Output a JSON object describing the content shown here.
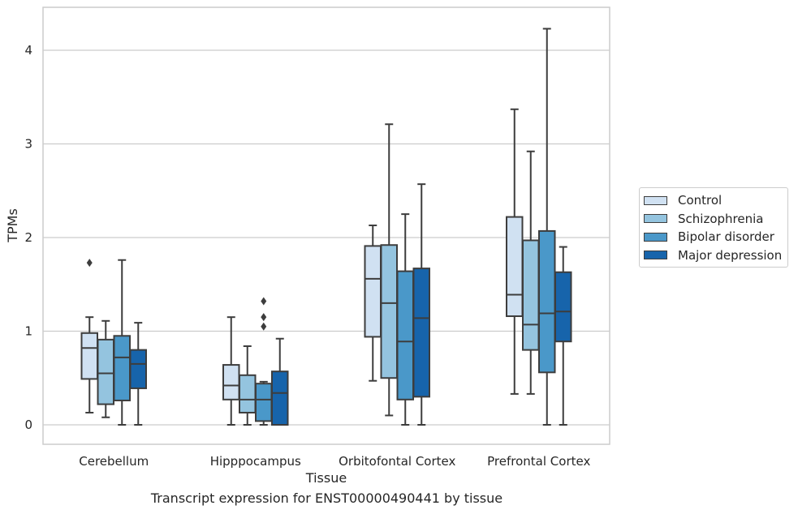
{
  "caption": "Transcript expression for ENST00000490441 by tissue",
  "chart_data": {
    "type": "box",
    "xlabel": "Tissue",
    "ylabel": "TPMs",
    "ylim": [
      -0.2,
      4.45
    ],
    "yticks": [
      0,
      1,
      2,
      3,
      4
    ],
    "grid": "horizontal",
    "legend_position": "right",
    "categories": [
      "Cerebellum",
      "Hipppocampus",
      "Orbitofontal Cortex",
      "Prefrontal Cortex"
    ],
    "series": [
      {
        "name": "Control",
        "color": "#d0e1f2",
        "boxes": [
          {
            "whisker_low": 0.13,
            "q1": 0.49,
            "median": 0.82,
            "q3": 0.98,
            "whisker_high": 1.15,
            "outliers": [
              1.73
            ]
          },
          {
            "whisker_low": 0.0,
            "q1": 0.27,
            "median": 0.42,
            "q3": 0.64,
            "whisker_high": 1.15,
            "outliers": []
          },
          {
            "whisker_low": 0.47,
            "q1": 0.94,
            "median": 1.56,
            "q3": 1.91,
            "whisker_high": 2.13,
            "outliers": []
          },
          {
            "whisker_low": 0.33,
            "q1": 1.16,
            "median": 1.39,
            "q3": 2.22,
            "whisker_high": 3.37,
            "outliers": []
          }
        ]
      },
      {
        "name": "Schizophrenia",
        "color": "#94c4df",
        "boxes": [
          {
            "whisker_low": 0.08,
            "q1": 0.22,
            "median": 0.55,
            "q3": 0.91,
            "whisker_high": 1.11,
            "outliers": []
          },
          {
            "whisker_low": 0.0,
            "q1": 0.13,
            "median": 0.27,
            "q3": 0.53,
            "whisker_high": 0.84,
            "outliers": []
          },
          {
            "whisker_low": 0.1,
            "q1": 0.5,
            "median": 1.3,
            "q3": 1.92,
            "whisker_high": 3.21,
            "outliers": []
          },
          {
            "whisker_low": 0.33,
            "q1": 0.8,
            "median": 1.07,
            "q3": 1.97,
            "whisker_high": 2.92,
            "outliers": []
          }
        ]
      },
      {
        "name": "Bipolar disorder",
        "color": "#4a98c9",
        "boxes": [
          {
            "whisker_low": 0.0,
            "q1": 0.26,
            "median": 0.72,
            "q3": 0.95,
            "whisker_high": 1.76,
            "outliers": []
          },
          {
            "whisker_low": 0.0,
            "q1": 0.04,
            "median": 0.27,
            "q3": 0.44,
            "whisker_high": 0.46,
            "outliers": [
              1.05,
              1.15,
              1.32
            ]
          },
          {
            "whisker_low": 0.0,
            "q1": 0.27,
            "median": 0.89,
            "q3": 1.64,
            "whisker_high": 2.25,
            "outliers": []
          },
          {
            "whisker_low": 0.0,
            "q1": 0.56,
            "median": 1.19,
            "q3": 2.07,
            "whisker_high": 4.23,
            "outliers": []
          }
        ]
      },
      {
        "name": "Major depression",
        "color": "#1764ab",
        "boxes": [
          {
            "whisker_low": 0.0,
            "q1": 0.39,
            "median": 0.65,
            "q3": 0.8,
            "whisker_high": 1.09,
            "outliers": []
          },
          {
            "whisker_low": 0.0,
            "q1": 0.0,
            "median": 0.34,
            "q3": 0.57,
            "whisker_high": 0.92,
            "outliers": []
          },
          {
            "whisker_low": 0.0,
            "q1": 0.3,
            "median": 1.14,
            "q3": 1.67,
            "whisker_high": 2.57,
            "outliers": []
          },
          {
            "whisker_low": 0.0,
            "q1": 0.89,
            "median": 1.21,
            "q3": 1.63,
            "whisker_high": 1.9,
            "outliers": []
          }
        ]
      }
    ]
  }
}
